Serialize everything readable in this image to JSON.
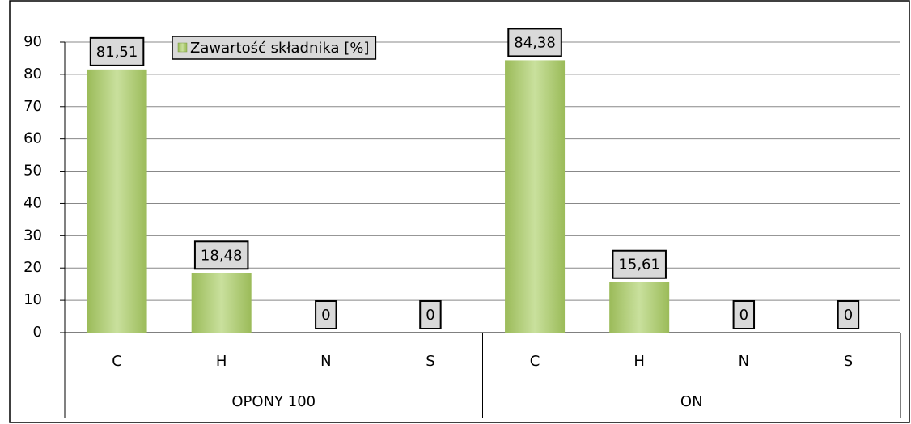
{
  "chart_data": {
    "type": "bar",
    "groups": [
      "OPONY 100",
      "ON"
    ],
    "categories": [
      "C",
      "H",
      "N",
      "S",
      "C",
      "H",
      "N",
      "S"
    ],
    "series": [
      {
        "name": "Zawartość składnika [%]",
        "color": "#9bbb59",
        "values": [
          81.51,
          18.48,
          0,
          0,
          84.38,
          15.61,
          0,
          0
        ],
        "value_labels": [
          "81,51",
          "18,48",
          "0",
          "0",
          "84,38",
          "15,61",
          "0",
          "0"
        ]
      }
    ],
    "ylim": [
      0,
      90
    ],
    "yticks": [
      0,
      10,
      20,
      30,
      40,
      50,
      60,
      70,
      80,
      90
    ],
    "grid": true,
    "legend": "top"
  }
}
